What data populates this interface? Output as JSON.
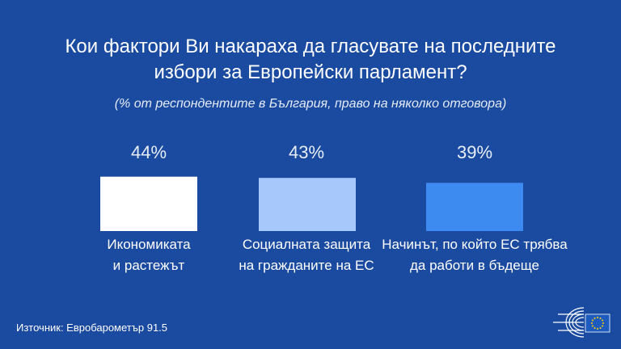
{
  "title_line1": "Кои фактори Ви накараха да гласувате на последните",
  "title_line2": "избори за Европейски парламент?",
  "subtitle": "(% от респондентите в България, право на няколко отговора)",
  "source": "Източник: Евробарометър 91.5",
  "logo": {
    "icon": "european-parliament-logo",
    "flag_color": "#1e5bbf",
    "star_color": "#ffd200"
  },
  "chart_data": {
    "type": "bar",
    "categories": [
      "Икономиката\nи растежът",
      "Социалната защита\nна гражданите на ЕС",
      "Начинът, по който ЕС трябва\nда работи в бъдеще"
    ],
    "values": [
      44,
      43,
      39
    ],
    "value_labels": [
      "44%",
      "43%",
      "39%"
    ],
    "colors": [
      "#ffffff",
      "#a6c8fa",
      "#3d8af0"
    ],
    "ylim": [
      0,
      100
    ],
    "grid": false,
    "legend": "none"
  }
}
